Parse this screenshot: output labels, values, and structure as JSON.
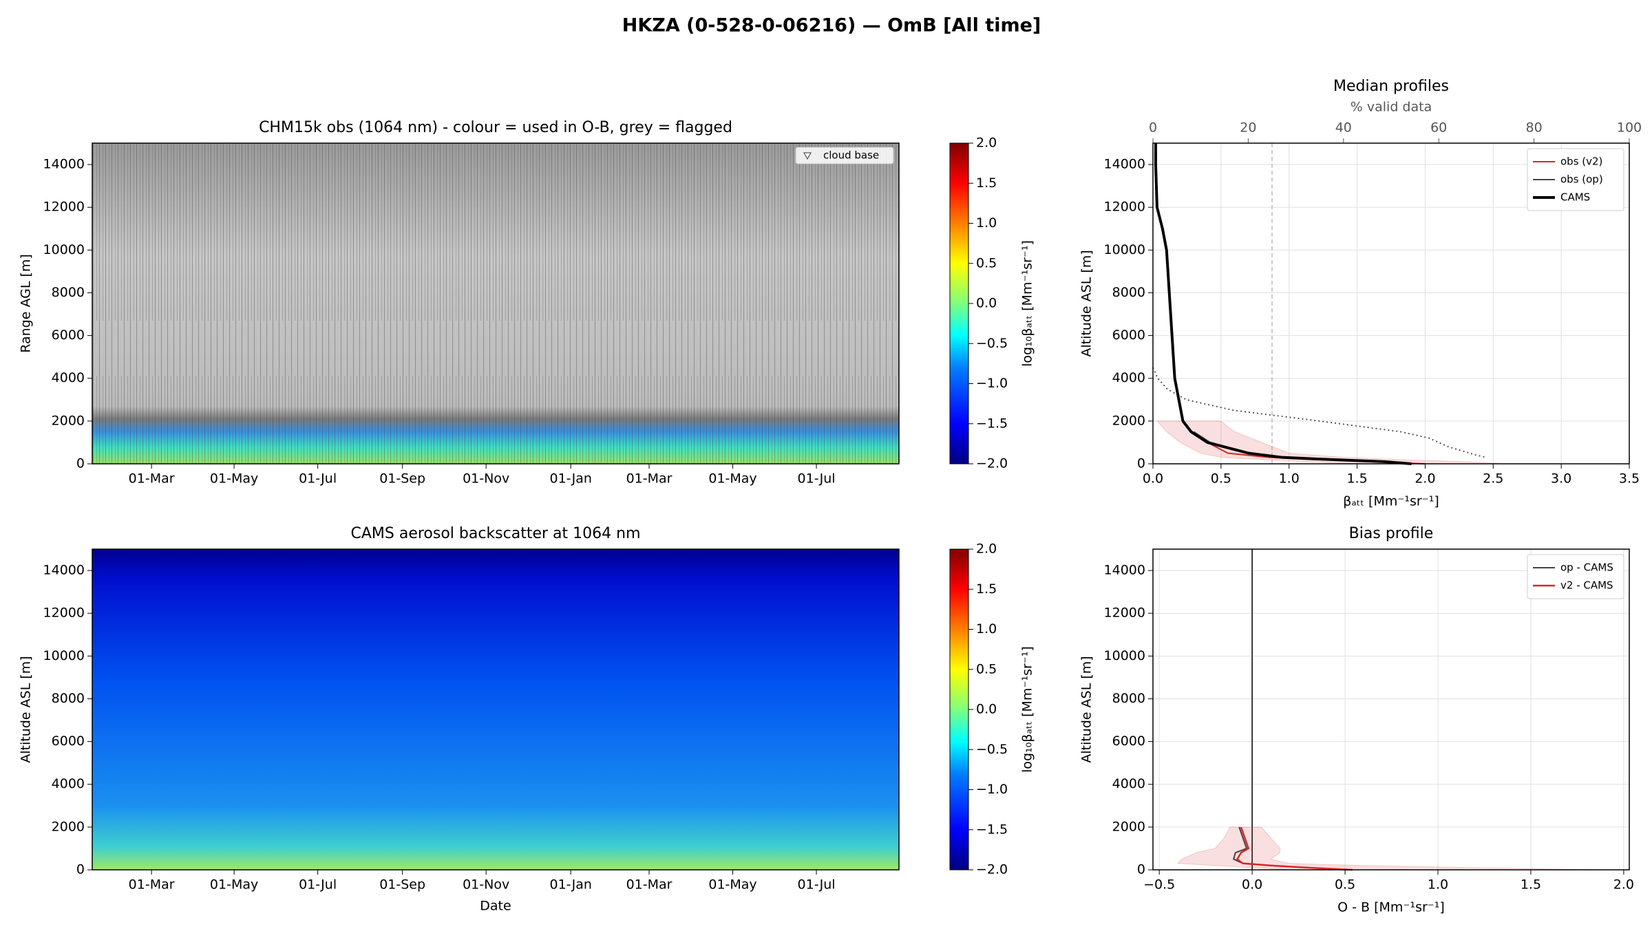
{
  "title": "HKZA (0-528-0-06216) — OmB [All time]",
  "chart_data": [
    {
      "type": "heatmap",
      "title": "CHM15k obs (1064 nm) - colour = used in O-B, grey = flagged",
      "ylabel": "Range AGL [m]",
      "categories": [
        "01-Mar",
        "01-May",
        "01-Jul",
        "01-Sep",
        "01-Nov",
        "01-Jan",
        "01-Mar",
        "01-May",
        "01-Jul"
      ],
      "ylim": [
        0,
        15000
      ],
      "yticks": [
        0,
        2000,
        4000,
        6000,
        8000,
        10000,
        12000,
        14000
      ],
      "legend": [
        "cloud base"
      ],
      "legend_loc": "upper right"
    },
    {
      "type": "colorbar",
      "label": "log₁₀βₐₜₜ [Mm⁻¹sr⁻¹]",
      "ylim": [
        -2,
        2
      ],
      "yticks": [
        {
          "value": 2,
          "label": "2.0"
        },
        {
          "value": 1.5,
          "label": "1.5"
        },
        {
          "value": 1,
          "label": "1.0"
        },
        {
          "value": 0.5,
          "label": "0.5"
        },
        {
          "value": 0,
          "label": "0.0"
        },
        {
          "value": -0.5,
          "label": "−0.5"
        },
        {
          "value": -1,
          "label": "−1.0"
        },
        {
          "value": -1.5,
          "label": "−1.5"
        },
        {
          "value": -2,
          "label": "−2.0"
        }
      ]
    },
    {
      "type": "heatmap",
      "title": "CAMS aerosol backscatter at 1064 nm",
      "ylabel": "Altitude ASL [m]",
      "xlabel": "Date",
      "categories": [
        "01-Mar",
        "01-May",
        "01-Jul",
        "01-Sep",
        "01-Nov",
        "01-Jan",
        "01-Mar",
        "01-May",
        "01-Jul"
      ],
      "ylim": [
        0,
        15000
      ],
      "yticks": [
        0,
        2000,
        4000,
        6000,
        8000,
        10000,
        12000,
        14000
      ]
    },
    {
      "type": "colorbar",
      "label": "log₁₀βₐₜₜ [Mm⁻¹sr⁻¹]",
      "ylim": [
        -2,
        2
      ],
      "yticks": [
        {
          "value": 2,
          "label": "2.0"
        },
        {
          "value": 1.5,
          "label": "1.5"
        },
        {
          "value": 1,
          "label": "1.0"
        },
        {
          "value": 0.5,
          "label": "0.5"
        },
        {
          "value": 0,
          "label": "0.0"
        },
        {
          "value": -0.5,
          "label": "−0.5"
        },
        {
          "value": -1,
          "label": "−1.0"
        },
        {
          "value": -1.5,
          "label": "−1.5"
        },
        {
          "value": -2,
          "label": "−2.0"
        }
      ]
    },
    {
      "type": "profile",
      "title": "Median profiles",
      "xlabel": "βₐₜₜ [Mm⁻¹sr⁻¹]",
      "ylabel": "Altitude ASL [m]",
      "x2label": "% valid data",
      "xlim": [
        0,
        3.5
      ],
      "xticks": [
        {
          "value": 0,
          "label": "0.0"
        },
        {
          "value": 0.5,
          "label": "0.5"
        },
        {
          "value": 1,
          "label": "1.0"
        },
        {
          "value": 1.5,
          "label": "1.5"
        },
        {
          "value": 2,
          "label": "2.0"
        },
        {
          "value": 2.5,
          "label": "2.5"
        },
        {
          "value": 3,
          "label": "3.0"
        },
        {
          "value": 3.5,
          "label": "3.5"
        }
      ],
      "x2lim": [
        0,
        100
      ],
      "x2ticks": [
        0,
        20,
        40,
        60,
        80,
        100
      ],
      "ylim": [
        0,
        15000
      ],
      "yticks": [
        0,
        2000,
        4000,
        6000,
        8000,
        10000,
        12000,
        14000
      ],
      "grid": true,
      "legend_loc": "upper right",
      "altitude": [
        15000,
        14000,
        12000,
        11000,
        10000,
        9000,
        8000,
        6000,
        4000,
        3000,
        2000,
        1500,
        1000,
        500,
        300,
        200,
        100,
        0
      ],
      "series": [
        {
          "name": "obs (v2)",
          "color": "#d62728",
          "linewidth": 2,
          "values": [
            null,
            null,
            null,
            null,
            null,
            null,
            null,
            null,
            null,
            null,
            null,
            0.28,
            0.4,
            0.55,
            0.85,
            1.2,
            1.6,
            2.0
          ],
          "lower": [
            null,
            null,
            null,
            null,
            null,
            null,
            null,
            null,
            null,
            null,
            0.03,
            0.1,
            0.2,
            0.35,
            0.5,
            0.8,
            1.1,
            1.5
          ],
          "upper": [
            null,
            null,
            null,
            null,
            null,
            null,
            null,
            null,
            null,
            null,
            0.5,
            0.6,
            0.8,
            1.0,
            1.4,
            1.8,
            2.3,
            2.6
          ]
        },
        {
          "name": "obs (op)",
          "color": "#444444",
          "linewidth": 2,
          "values": [
            null,
            null,
            null,
            null,
            null,
            null,
            null,
            null,
            null,
            null,
            null,
            0.3,
            0.42,
            0.7,
            0.95,
            1.3,
            1.75,
            1.9
          ]
        },
        {
          "name": "CAMS",
          "color": "#000000",
          "linewidth": 4,
          "values": [
            0.02,
            0.02,
            0.03,
            0.07,
            0.1,
            0.11,
            0.12,
            0.14,
            0.16,
            0.19,
            0.22,
            0.28,
            0.4,
            0.7,
            0.95,
            1.3,
            1.7,
            1.9
          ]
        }
      ],
      "valid_data": {
        "color": "#555555",
        "altitude": [
          4500,
          4000,
          3500,
          3000,
          2500,
          2000,
          1500,
          1200,
          800,
          400,
          300
        ],
        "values": [
          0,
          1,
          3,
          7,
          17,
          35,
          52,
          58,
          62,
          68,
          70
        ]
      },
      "x2_threshold": 25
    },
    {
      "type": "profile",
      "title": "Bias profile",
      "xlabel": "O - B [Mm⁻¹sr⁻¹]",
      "ylabel": "Altitude ASL [m]",
      "xlim": [
        -0.534,
        2.03
      ],
      "xticks": [
        {
          "value": -0.5,
          "label": "−0.5"
        },
        {
          "value": 0,
          "label": "0.0"
        },
        {
          "value": 0.5,
          "label": "0.5"
        },
        {
          "value": 1,
          "label": "1.0"
        },
        {
          "value": 1.5,
          "label": "1.5"
        },
        {
          "value": 2,
          "label": "2.0"
        }
      ],
      "ylim": [
        0,
        15000
      ],
      "yticks": [
        0,
        2000,
        4000,
        6000,
        8000,
        10000,
        12000,
        14000
      ],
      "grid": true,
      "legend_loc": "upper right",
      "vline": 0,
      "altitude": [
        2000,
        1500,
        1000,
        800,
        500,
        300,
        200,
        100,
        0
      ],
      "series": [
        {
          "name": "op - CAMS",
          "color": "#444444",
          "linewidth": 2,
          "values": [
            -0.07,
            -0.05,
            -0.03,
            -0.09,
            -0.1,
            -0.05,
            0.1,
            0.3,
            0.5
          ]
        },
        {
          "name": "v2 - CAMS",
          "color": "#d62728",
          "linewidth": 2.5,
          "values": [
            -0.06,
            -0.04,
            -0.02,
            -0.06,
            -0.08,
            -0.05,
            0.1,
            0.3,
            0.54
          ],
          "lower": [
            -0.12,
            -0.15,
            -0.2,
            -0.3,
            -0.38,
            -0.4,
            -0.2,
            0,
            0.2
          ],
          "upper": [
            0.05,
            0.1,
            0.15,
            0.15,
            0.1,
            0.2,
            0.6,
            1.2,
            1.9
          ]
        }
      ]
    }
  ]
}
